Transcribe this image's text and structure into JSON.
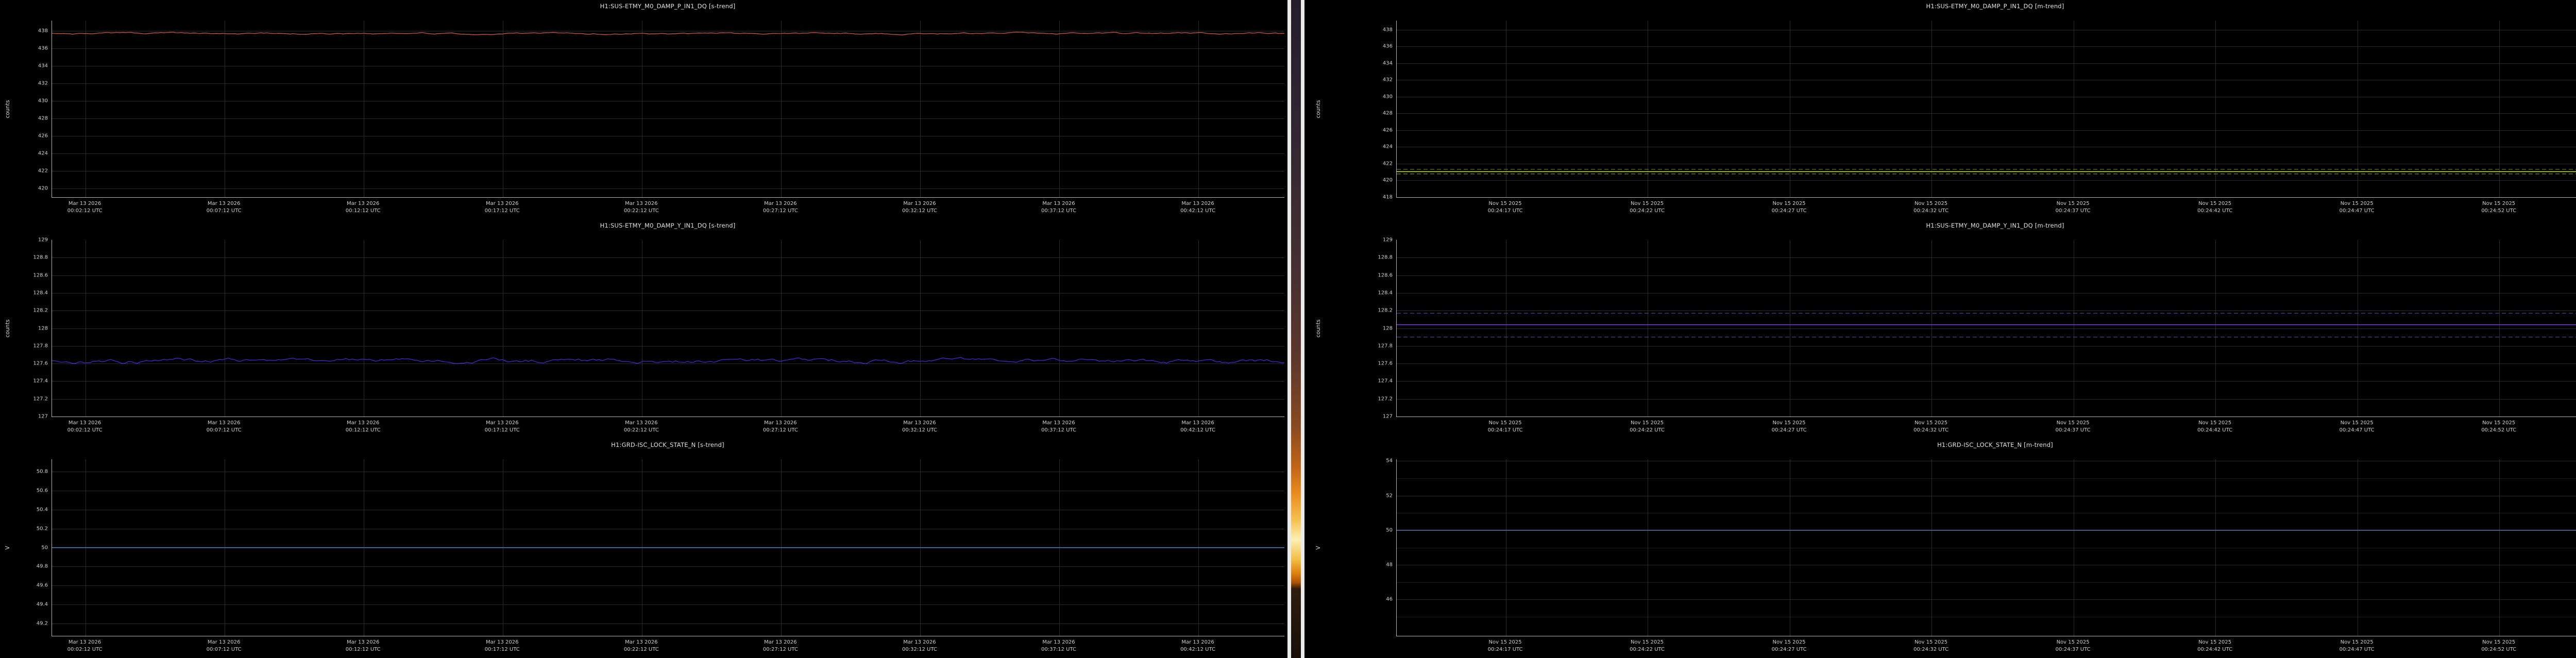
{
  "theme": {
    "background": "#000000",
    "grid_major": "#2b2b2b",
    "grid_minor": "#1c1c1c",
    "spine": "#b8b8b8",
    "title_color": "#e2e2e2",
    "tick_color": "#d0d0d0",
    "window_border_color": "#ebebe9"
  },
  "desktop": {
    "wallpaper_gradient_stops": [
      "#231e2a 0%",
      "#332731 22%",
      "#473031 42%",
      "#5d382c 55%",
      "#8a4a20 65%",
      "#c06518 71%",
      "#ea8c1e 75%",
      "#f4c050 79%",
      "#fcf0b2 82%",
      "#f2be46 85%",
      "#df840f 87%",
      "#b05406 88.5%",
      "#2e1c0f 89.5%",
      "#170f08 100%"
    ]
  },
  "windows": [
    {
      "id": "s-trend-window",
      "trend_type": "s-trend",
      "xticks": [
        {
          "date": "Mar 13 2026",
          "time": "00:02:12 UTC"
        },
        {
          "date": "Mar 13 2026",
          "time": "00:07:12 UTC"
        },
        {
          "date": "Mar 13 2026",
          "time": "00:12:12 UTC"
        },
        {
          "date": "Mar 13 2026",
          "time": "00:17:12 UTC"
        },
        {
          "date": "Mar 13 2026",
          "time": "00:22:12 UTC"
        },
        {
          "date": "Mar 13 2026",
          "time": "00:27:12 UTC"
        },
        {
          "date": "Mar 13 2026",
          "time": "00:32:12 UTC"
        },
        {
          "date": "Mar 13 2026",
          "time": "00:37:12 UTC"
        },
        {
          "date": "Mar 13 2026",
          "time": "00:42:12 UTC"
        }
      ],
      "plots": [
        {
          "title": "H1:SUS-ETMY_M0_DAMP_P_IN1_DQ [s-trend]",
          "ylabel": "counts",
          "ylim": [
            419.0,
            439.2
          ],
          "yticks": [
            438,
            436,
            434,
            432,
            430,
            428,
            426,
            424,
            422,
            420
          ],
          "minor_yticks": [],
          "trace": {
            "type": "line",
            "style": "noisy",
            "color": "#e0604e",
            "mean": 437.72,
            "amplitude": 0.12
          }
        },
        {
          "title": "H1:SUS-ETMY_M0_DAMP_Y_IN1_DQ [s-trend]",
          "ylabel": "counts",
          "ylim": [
            127.0,
            129.0
          ],
          "yticks": [
            129,
            128.8,
            128.6,
            128.4,
            128.2,
            128,
            127.8,
            127.6,
            127.4,
            127.2,
            127
          ],
          "minor_yticks": [],
          "trace": {
            "type": "line",
            "style": "noisy",
            "color": "#4a2ae2",
            "mean": 127.63,
            "amplitude": 0.032
          }
        },
        {
          "title": "H1:GRD-ISC_LOCK_STATE_N [s-trend]",
          "ylabel": "V",
          "ylim": [
            49.07,
            50.93
          ],
          "yticks": [
            50.8,
            50.6,
            50.4,
            50.2,
            50,
            49.8,
            49.6,
            49.4,
            49.2
          ],
          "minor_yticks": [],
          "trace": {
            "type": "line",
            "style": "flat",
            "color": "#4e85c5",
            "value": 50
          }
        }
      ]
    },
    {
      "id": "m-trend-window",
      "trend_type": "m-trend",
      "xticks": [
        {
          "date": "Nov 15 2025",
          "time": "00:24:17 UTC"
        },
        {
          "date": "Nov 15 2025",
          "time": "00:24:22 UTC"
        },
        {
          "date": "Nov 15 2025",
          "time": "00:24:27 UTC"
        },
        {
          "date": "Nov 15 2025",
          "time": "00:24:32 UTC"
        },
        {
          "date": "Nov 15 2025",
          "time": "00:24:37 UTC"
        },
        {
          "date": "Nov 15 2025",
          "time": "00:24:42 UTC"
        },
        {
          "date": "Nov 15 2025",
          "time": "00:24:47 UTC"
        },
        {
          "date": "Nov 15 2025",
          "time": "00:24:52 UTC"
        }
      ],
      "plots": [
        {
          "title": "H1:SUS-ETMY_M0_DAMP_P_IN1_DQ [m-trend]",
          "ylabel": "counts",
          "ylim": [
            418.0,
            439.1
          ],
          "yticks": [
            438,
            436,
            434,
            432,
            430,
            428,
            426,
            424,
            422,
            420,
            418
          ],
          "minor_yticks": [],
          "trace": {
            "type": "line",
            "style": "mean_minmax",
            "mean_color": "#c7ee3f",
            "minmax_color": "#7f922c",
            "mean": 421.05,
            "min": 420.78,
            "max": 421.33
          }
        },
        {
          "title": "H1:SUS-ETMY_M0_DAMP_Y_IN1_DQ [m-trend]",
          "ylabel": "counts",
          "ylim": [
            127.0,
            129.0
          ],
          "yticks": [
            129,
            128.8,
            128.6,
            128.4,
            128.2,
            128,
            127.8,
            127.6,
            127.4,
            127.2,
            127
          ],
          "minor_yticks": [],
          "trace": {
            "type": "line",
            "style": "mean_minmax",
            "mean_color": "#7b3cf0",
            "minmax_color": "#63439c",
            "mean": 128.04,
            "min": 127.9,
            "max": 128.17
          }
        },
        {
          "title": "H1:GRD-ISC_LOCK_STATE_N [m-trend]",
          "ylabel": "V",
          "ylim": [
            43.9,
            54.1
          ],
          "yticks": [
            54,
            52,
            50,
            48,
            46
          ],
          "minor_yticks": [
            53,
            51,
            49,
            47,
            45
          ],
          "trace": {
            "type": "line",
            "style": "flat",
            "color": "#4e85c5",
            "value": 50
          }
        }
      ]
    }
  ]
}
